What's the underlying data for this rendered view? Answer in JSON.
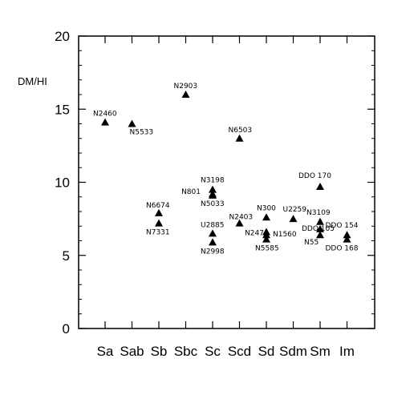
{
  "chart_data": {
    "type": "scatter",
    "title": "",
    "xlabel": "",
    "ylabel": "DM/HI",
    "categories": [
      "Sa",
      "Sab",
      "Sb",
      "Sbc",
      "Sc",
      "Scd",
      "Sd",
      "Sdm",
      "Sm",
      "Im"
    ],
    "ylim": [
      0,
      20
    ],
    "yticks": [
      "0",
      "5",
      "10",
      "15",
      "20"
    ],
    "grid": false,
    "marker": "filled-triangle",
    "points": [
      {
        "label": "N2460",
        "category": "Sa",
        "y": 14.1
      },
      {
        "label": "N5533",
        "category": "Sab",
        "y": 14.0
      },
      {
        "label": "N2903",
        "category": "Sbc",
        "y": 16.0
      },
      {
        "label": "N6503",
        "category": "Scd",
        "y": 13.0
      },
      {
        "label": "N6674",
        "category": "Sb",
        "y": 7.9
      },
      {
        "label": "N7331",
        "category": "Sb",
        "y": 7.2
      },
      {
        "label": "N3198",
        "category": "Sc",
        "y": 9.5
      },
      {
        "label": "N801",
        "category": "Sc",
        "y": 9.2
      },
      {
        "label": "N5033",
        "category": "Sc",
        "y": 9.1
      },
      {
        "label": "U2885",
        "category": "Sc",
        "y": 6.5
      },
      {
        "label": "N2998",
        "category": "Sc",
        "y": 5.9
      },
      {
        "label": "N2403",
        "category": "Scd",
        "y": 7.2
      },
      {
        "label": "N300",
        "category": "Sd",
        "y": 7.6
      },
      {
        "label": "N247",
        "category": "Sd",
        "y": 6.6
      },
      {
        "label": "N1560",
        "category": "Sd",
        "y": 6.4
      },
      {
        "label": "N5585",
        "category": "Sd",
        "y": 6.1
      },
      {
        "label": "U2259",
        "category": "Sdm",
        "y": 7.5
      },
      {
        "label": "DDO 170",
        "category": "Sm",
        "y": 9.7
      },
      {
        "label": "N3109",
        "category": "Sm",
        "y": 7.3
      },
      {
        "label": "DDO 105",
        "category": "Sm",
        "y": 6.8
      },
      {
        "label": "N55",
        "category": "Sm",
        "y": 6.4
      },
      {
        "label": "DDO 154",
        "category": "Im",
        "y": 6.4
      },
      {
        "label": "DDO 168",
        "category": "Im",
        "y": 6.1
      }
    ]
  }
}
